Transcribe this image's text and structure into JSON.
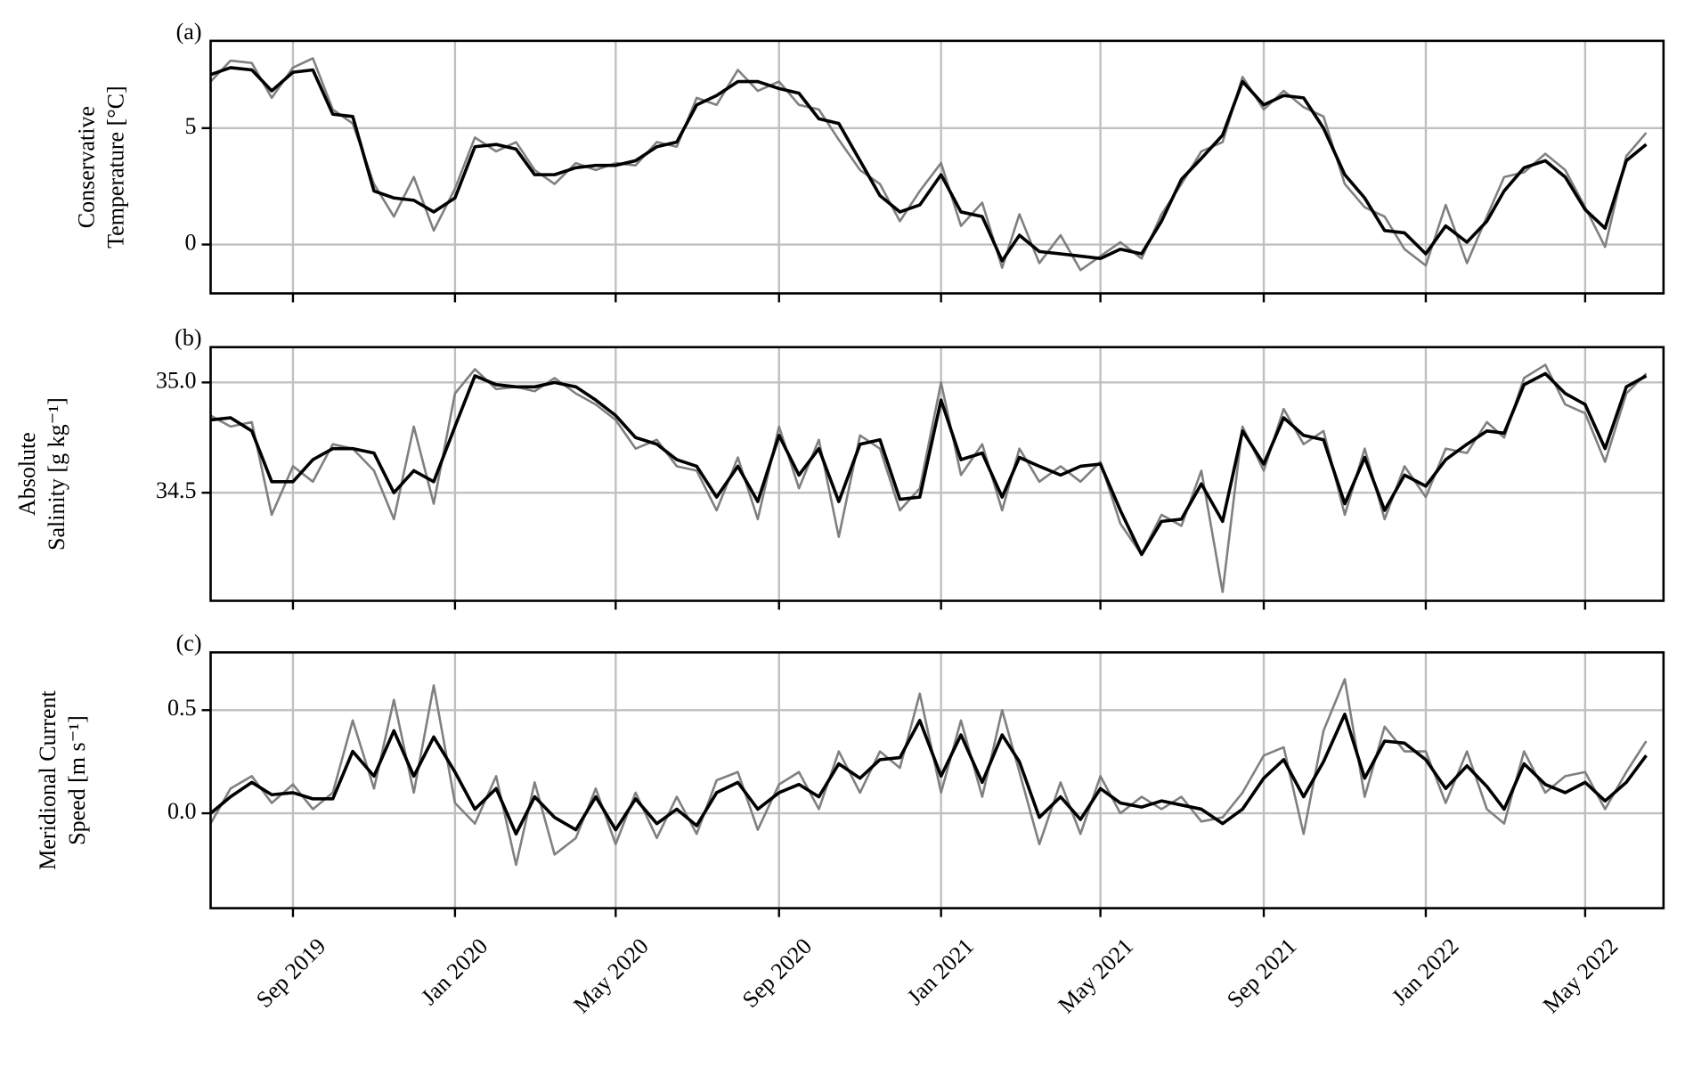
{
  "chart_data": [
    {
      "type": "line",
      "panel_label": "(a)",
      "ylabel": [
        "Conservative",
        "Temperature [°C]"
      ],
      "x": [
        "2019-07-01",
        "2019-07-16",
        "2019-08-01",
        "2019-08-16",
        "2019-09-01",
        "2019-09-16",
        "2019-10-01",
        "2019-10-16",
        "2019-11-01",
        "2019-11-16",
        "2019-12-01",
        "2019-12-16",
        "2020-01-01",
        "2020-01-16",
        "2020-02-01",
        "2020-02-16",
        "2020-03-01",
        "2020-03-16",
        "2020-04-01",
        "2020-04-16",
        "2020-05-01",
        "2020-05-16",
        "2020-06-01",
        "2020-06-16",
        "2020-07-01",
        "2020-07-16",
        "2020-08-01",
        "2020-08-16",
        "2020-09-01",
        "2020-09-16",
        "2020-10-01",
        "2020-10-16",
        "2020-11-01",
        "2020-11-16",
        "2020-12-01",
        "2020-12-16",
        "2021-01-01",
        "2021-01-16",
        "2021-02-01",
        "2021-02-16",
        "2021-03-01",
        "2021-03-16",
        "2021-04-01",
        "2021-04-16",
        "2021-05-01",
        "2021-05-16",
        "2021-06-01",
        "2021-06-16",
        "2021-07-01",
        "2021-07-16",
        "2021-08-01",
        "2021-08-16",
        "2021-09-01",
        "2021-09-16",
        "2021-10-01",
        "2021-10-16",
        "2021-11-01",
        "2021-11-16",
        "2021-12-01",
        "2021-12-16",
        "2022-01-01",
        "2022-01-16",
        "2022-02-01",
        "2022-02-16",
        "2022-03-01",
        "2022-03-16",
        "2022-04-01",
        "2022-04-16",
        "2022-05-01",
        "2022-05-16",
        "2022-06-01",
        "2022-06-16"
      ],
      "series": [
        {
          "color": "#808080",
          "values": [
            7.0,
            7.9,
            7.8,
            6.3,
            7.6,
            8.0,
            5.8,
            5.2,
            2.6,
            1.2,
            2.9,
            0.6,
            2.4,
            4.6,
            4.0,
            4.4,
            3.2,
            2.6,
            3.5,
            3.2,
            3.5,
            3.4,
            4.4,
            4.2,
            6.3,
            6.0,
            7.5,
            6.6,
            7.0,
            6.0,
            5.8,
            4.5,
            3.2,
            2.6,
            1.0,
            2.3,
            3.5,
            0.8,
            1.8,
            -1.0,
            1.3,
            -0.8,
            0.4,
            -1.1,
            -0.5,
            0.1,
            -0.6,
            1.3,
            2.6,
            4.0,
            4.4,
            7.2,
            5.8,
            6.6,
            5.9,
            5.5,
            2.6,
            1.6,
            1.2,
            -0.2,
            -0.9,
            1.7,
            -0.8,
            1.2,
            2.9,
            3.1,
            3.9,
            3.2,
            1.6,
            -0.1,
            3.8,
            4.8
          ]
        },
        {
          "color": "#000000",
          "values": [
            7.3,
            7.6,
            7.5,
            6.6,
            7.4,
            7.5,
            5.6,
            5.5,
            2.3,
            2.0,
            1.9,
            1.4,
            2.0,
            4.2,
            4.3,
            4.1,
            3.0,
            3.0,
            3.3,
            3.4,
            3.4,
            3.6,
            4.2,
            4.4,
            6.0,
            6.4,
            7.0,
            7.0,
            6.7,
            6.5,
            5.4,
            5.2,
            3.6,
            2.1,
            1.4,
            1.7,
            3.0,
            1.4,
            1.2,
            -0.7,
            0.4,
            -0.3,
            -0.4,
            -0.5,
            -0.6,
            -0.2,
            -0.4,
            1.0,
            2.8,
            3.7,
            4.7,
            7.0,
            6.0,
            6.4,
            6.3,
            5.0,
            3.0,
            2.0,
            0.6,
            0.5,
            -0.4,
            0.8,
            0.1,
            1.0,
            2.3,
            3.3,
            3.6,
            2.9,
            1.5,
            0.7,
            3.6,
            4.3
          ]
        }
      ],
      "xlim": [
        "2019-07-01",
        "2022-06-29"
      ],
      "xticks": [
        "2019-09-01",
        "2020-01-01",
        "2020-05-01",
        "2020-09-01",
        "2021-01-01",
        "2021-05-01",
        "2021-09-01",
        "2022-01-01",
        "2022-05-01"
      ],
      "ylim": [
        -2.1,
        8.75
      ],
      "yticks": [
        0,
        5
      ],
      "grid": true
    },
    {
      "type": "line",
      "panel_label": "(b)",
      "ylabel": [
        "Absolute",
        "Salinity [g kg⁻¹]"
      ],
      "x": [
        "2019-07-01",
        "2019-07-16",
        "2019-08-01",
        "2019-08-16",
        "2019-09-01",
        "2019-09-16",
        "2019-10-01",
        "2019-10-16",
        "2019-11-01",
        "2019-11-16",
        "2019-12-01",
        "2019-12-16",
        "2020-01-01",
        "2020-01-16",
        "2020-02-01",
        "2020-02-16",
        "2020-03-01",
        "2020-03-16",
        "2020-04-01",
        "2020-04-16",
        "2020-05-01",
        "2020-05-16",
        "2020-06-01",
        "2020-06-16",
        "2020-07-01",
        "2020-07-16",
        "2020-08-01",
        "2020-08-16",
        "2020-09-01",
        "2020-09-16",
        "2020-10-01",
        "2020-10-16",
        "2020-11-01",
        "2020-11-16",
        "2020-12-01",
        "2020-12-16",
        "2021-01-01",
        "2021-01-16",
        "2021-02-01",
        "2021-02-16",
        "2021-03-01",
        "2021-03-16",
        "2021-04-01",
        "2021-04-16",
        "2021-05-01",
        "2021-05-16",
        "2021-06-01",
        "2021-06-16",
        "2021-07-01",
        "2021-07-16",
        "2021-08-01",
        "2021-08-16",
        "2021-09-01",
        "2021-09-16",
        "2021-10-01",
        "2021-10-16",
        "2021-11-01",
        "2021-11-16",
        "2021-12-01",
        "2021-12-16",
        "2022-01-01",
        "2022-01-16",
        "2022-02-01",
        "2022-02-16",
        "2022-03-01",
        "2022-03-16",
        "2022-04-01",
        "2022-04-16",
        "2022-05-01",
        "2022-05-16",
        "2022-06-01",
        "2022-06-16"
      ],
      "series": [
        {
          "color": "#808080",
          "values": [
            34.85,
            34.8,
            34.82,
            34.4,
            34.62,
            34.55,
            34.72,
            34.7,
            34.6,
            34.38,
            34.8,
            34.45,
            34.95,
            35.06,
            34.97,
            34.98,
            34.96,
            35.02,
            34.95,
            34.9,
            34.83,
            34.7,
            34.74,
            34.62,
            34.6,
            34.42,
            34.66,
            34.38,
            34.8,
            34.52,
            34.74,
            34.3,
            34.76,
            34.7,
            34.42,
            34.52,
            35.0,
            34.58,
            34.72,
            34.42,
            34.7,
            34.55,
            34.62,
            34.55,
            34.64,
            34.36,
            34.22,
            34.4,
            34.35,
            34.6,
            34.05,
            34.8,
            34.6,
            34.88,
            34.72,
            34.78,
            34.4,
            34.7,
            34.38,
            34.62,
            34.48,
            34.7,
            34.68,
            34.82,
            34.75,
            35.02,
            35.08,
            34.9,
            34.86,
            34.64,
            34.95,
            35.04
          ]
        },
        {
          "color": "#000000",
          "values": [
            34.83,
            34.84,
            34.78,
            34.55,
            34.55,
            34.65,
            34.7,
            34.7,
            34.68,
            34.5,
            34.6,
            34.55,
            34.8,
            35.03,
            34.99,
            34.98,
            34.98,
            35.0,
            34.98,
            34.92,
            34.85,
            34.75,
            34.72,
            34.65,
            34.62,
            34.48,
            34.62,
            34.46,
            34.76,
            34.58,
            34.7,
            34.46,
            34.72,
            34.74,
            34.47,
            34.48,
            34.92,
            34.65,
            34.68,
            34.48,
            34.66,
            34.62,
            34.58,
            34.62,
            34.63,
            34.42,
            34.22,
            34.37,
            34.38,
            34.54,
            34.37,
            34.78,
            34.63,
            34.84,
            34.76,
            34.74,
            34.45,
            34.66,
            34.42,
            34.58,
            34.53,
            34.65,
            34.72,
            34.78,
            34.77,
            34.99,
            35.04,
            34.95,
            34.9,
            34.7,
            34.98,
            35.03
          ]
        }
      ],
      "xlim": [
        "2019-07-01",
        "2022-06-29"
      ],
      "xticks": [
        "2019-09-01",
        "2020-01-01",
        "2020-05-01",
        "2020-09-01",
        "2021-01-01",
        "2021-05-01",
        "2021-09-01",
        "2022-01-01",
        "2022-05-01"
      ],
      "ylim": [
        34.01,
        35.16
      ],
      "yticks": [
        {
          "value": 34.5,
          "label": "34.5"
        },
        {
          "value": 35,
          "label": "35.0"
        }
      ],
      "grid": true
    },
    {
      "type": "line",
      "panel_label": "(c)",
      "ylabel": [
        "Meridional Current",
        "Speed [m s⁻¹]"
      ],
      "x": [
        "2019-07-01",
        "2019-07-16",
        "2019-08-01",
        "2019-08-16",
        "2019-09-01",
        "2019-09-16",
        "2019-10-01",
        "2019-10-16",
        "2019-11-01",
        "2019-11-16",
        "2019-12-01",
        "2019-12-16",
        "2020-01-01",
        "2020-01-16",
        "2020-02-01",
        "2020-02-16",
        "2020-03-01",
        "2020-03-16",
        "2020-04-01",
        "2020-04-16",
        "2020-05-01",
        "2020-05-16",
        "2020-06-01",
        "2020-06-16",
        "2020-07-01",
        "2020-07-16",
        "2020-08-01",
        "2020-08-16",
        "2020-09-01",
        "2020-09-16",
        "2020-10-01",
        "2020-10-16",
        "2020-11-01",
        "2020-11-16",
        "2020-12-01",
        "2020-12-16",
        "2021-01-01",
        "2021-01-16",
        "2021-02-01",
        "2021-02-16",
        "2021-03-01",
        "2021-03-16",
        "2021-04-01",
        "2021-04-16",
        "2021-05-01",
        "2021-05-16",
        "2021-06-01",
        "2021-06-16",
        "2021-07-01",
        "2021-07-16",
        "2021-08-01",
        "2021-08-16",
        "2021-09-01",
        "2021-09-16",
        "2021-10-01",
        "2021-10-16",
        "2021-11-01",
        "2021-11-16",
        "2021-12-01",
        "2021-12-16",
        "2022-01-01",
        "2022-01-16",
        "2022-02-01",
        "2022-02-16",
        "2022-03-01",
        "2022-03-16",
        "2022-04-01",
        "2022-04-16",
        "2022-05-01",
        "2022-05-16",
        "2022-06-01",
        "2022-06-16"
      ],
      "series": [
        {
          "color": "#808080",
          "values": [
            -0.05,
            0.12,
            0.18,
            0.05,
            0.14,
            0.02,
            0.1,
            0.45,
            0.12,
            0.55,
            0.1,
            0.62,
            0.05,
            -0.05,
            0.18,
            -0.25,
            0.15,
            -0.2,
            -0.12,
            0.12,
            -0.15,
            0.1,
            -0.12,
            0.08,
            -0.1,
            0.16,
            0.2,
            -0.08,
            0.14,
            0.2,
            0.02,
            0.3,
            0.1,
            0.3,
            0.22,
            0.58,
            0.1,
            0.45,
            0.08,
            0.5,
            0.2,
            -0.15,
            0.15,
            -0.1,
            0.18,
            0.0,
            0.08,
            0.02,
            0.08,
            -0.04,
            -0.02,
            0.1,
            0.28,
            0.32,
            -0.1,
            0.4,
            0.65,
            0.08,
            0.42,
            0.3,
            0.3,
            0.05,
            0.3,
            0.02,
            -0.05,
            0.3,
            0.1,
            0.18,
            0.2,
            0.02,
            0.2,
            0.35
          ]
        },
        {
          "color": "#000000",
          "values": [
            0.0,
            0.08,
            0.15,
            0.09,
            0.1,
            0.07,
            0.07,
            0.3,
            0.18,
            0.4,
            0.18,
            0.37,
            0.2,
            0.02,
            0.12,
            -0.1,
            0.08,
            -0.02,
            -0.08,
            0.08,
            -0.08,
            0.07,
            -0.05,
            0.02,
            -0.06,
            0.1,
            0.15,
            0.02,
            0.1,
            0.14,
            0.08,
            0.24,
            0.17,
            0.26,
            0.27,
            0.45,
            0.18,
            0.38,
            0.15,
            0.38,
            0.25,
            -0.02,
            0.08,
            -0.03,
            0.12,
            0.05,
            0.03,
            0.06,
            0.04,
            0.02,
            -0.05,
            0.02,
            0.17,
            0.26,
            0.08,
            0.25,
            0.48,
            0.17,
            0.35,
            0.34,
            0.26,
            0.12,
            0.23,
            0.13,
            0.02,
            0.24,
            0.14,
            0.1,
            0.15,
            0.06,
            0.15,
            0.28
          ]
        }
      ],
      "xlim": [
        "2019-07-01",
        "2022-06-29"
      ],
      "xticks": [
        {
          "value": "2019-09-01",
          "label": "Sep 2019"
        },
        {
          "value": "2020-01-01",
          "label": "Jan 2020"
        },
        {
          "value": "2020-05-01",
          "label": "May 2020"
        },
        {
          "value": "2020-09-01",
          "label": "Sep 2020"
        },
        {
          "value": "2021-01-01",
          "label": "Jan 2021"
        },
        {
          "value": "2021-05-01",
          "label": "May 2021"
        },
        {
          "value": "2021-09-01",
          "label": "Sep 2021"
        },
        {
          "value": "2022-01-01",
          "label": "Jan 2022"
        },
        {
          "value": "2022-05-01",
          "label": "May 2022"
        }
      ],
      "ylim": [
        -0.46,
        0.78
      ],
      "yticks": [
        {
          "value": 0,
          "label": "0.0"
        },
        0.5
      ],
      "grid": true
    }
  ]
}
